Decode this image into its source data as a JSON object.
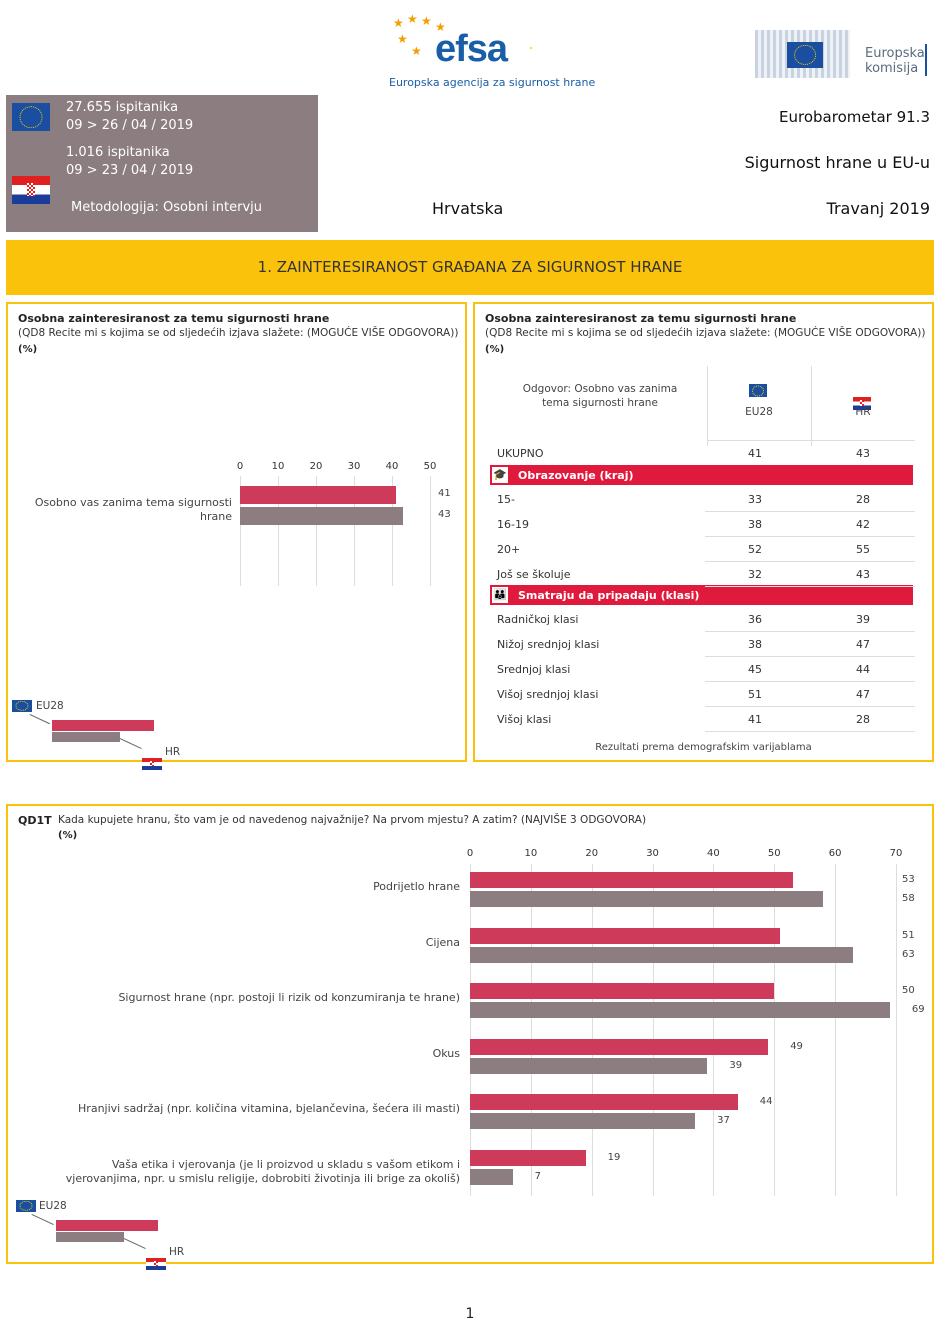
{
  "header": {
    "efsa_word": "efsa",
    "efsa_subtitle": "Europska agencija za sigurnost hrane",
    "ec_line1": "Europska",
    "ec_line2": "komisija"
  },
  "info": {
    "eu_count": "27.655 ispitanika",
    "eu_dates": "09 > 26 / 04 / 2019",
    "hr_count": "1.016 ispitanika",
    "hr_dates": "09 > 23 / 04 / 2019",
    "method": "Metodologija: Osobni intervju"
  },
  "titles": {
    "survey": "Eurobarometar 91.3",
    "topic": "Sigurnost hrane u EU-u",
    "country": "Hrvatska",
    "date": "Travanj  2019"
  },
  "banner": "1. ZAINTERESIRANOST GRAĐANA ZA SIGURNOST HRANE",
  "panel_left": {
    "title": "Osobna zainteresiranost za temu sigurnosti hrane",
    "question": "(QD8 Recite mi s kojima se od sljedećih izjava slažete: (MOGUĆE VIŠE ODGOVORA))",
    "unit": "(%)",
    "chart_data": {
      "type": "bar",
      "orientation": "horizontal",
      "categories": [
        "Osobno vas zanima tema sigurnosti hrane"
      ],
      "series": [
        {
          "name": "EU28",
          "values": [
            41
          ]
        },
        {
          "name": "HR",
          "values": [
            43
          ]
        }
      ],
      "xlim": [
        0,
        50
      ],
      "ticks": [
        0,
        10,
        20,
        30,
        40,
        50
      ]
    },
    "legend_eu": "EU28",
    "legend_hr": "HR"
  },
  "panel_right": {
    "title": "Osobna zainteresiranost za temu sigurnosti hrane",
    "question": "(QD8 Recite mi s kojima se od sljedećih izjava slažete: (MOGUĆE VIŠE ODGOVORA))",
    "unit": "(%)",
    "answer_label": "Odgovor: Osobno vas zanima tema sigurnosti hrane",
    "col_eu": "EU28",
    "col_hr": "HR",
    "total": {
      "label": "UKUPNO",
      "eu": "41",
      "hr": "43"
    },
    "section_education": "Obrazovanje (kraj)",
    "education": [
      {
        "label": "15-",
        "eu": "33",
        "hr": "28"
      },
      {
        "label": "16-19",
        "eu": "38",
        "hr": "42"
      },
      {
        "label": "20+",
        "eu": "52",
        "hr": "55"
      },
      {
        "label": "Još se školuje",
        "eu": "32",
        "hr": "43"
      }
    ],
    "section_class": "Smatraju da pripadaju (klasi)",
    "class_rows": [
      {
        "label": "Radničkoj klasi",
        "eu": "36",
        "hr": "39"
      },
      {
        "label": "Nižoj srednjoj klasi",
        "eu": "38",
        "hr": "47"
      },
      {
        "label": "Srednjoj klasi",
        "eu": "45",
        "hr": "44"
      },
      {
        "label": "Višoj srednjoj klasi",
        "eu": "51",
        "hr": "47"
      },
      {
        "label": "Višoj klasi",
        "eu": "41",
        "hr": "28"
      }
    ],
    "footer": "Rezultati prema demografskim varijablama"
  },
  "panel_bottom": {
    "code": "QD1T",
    "question": "Kada kupujete hranu, što vam je od navedenog najvažnije? Na prvom mjestu? A zatim? (NAJVIŠE 3 ODGOVORA)",
    "unit": "(%)",
    "chart_data": {
      "type": "bar",
      "orientation": "horizontal",
      "categories": [
        "Podrijetlo hrane",
        "Cijena",
        "Sigurnost hrane (npr. postoji li rizik od konzumiranja te hrane)",
        "Okus",
        "Hranjivi sadržaj (npr. količina vitamina, bjelančevina, šećera ili masti)",
        "Vaša etika i vjerovanja (je li proizvod u skladu s vašom etikom i vjerovanjima, npr. u smislu religije, dobrobiti životinja ili brige za okoliš)"
      ],
      "series": [
        {
          "name": "EU28",
          "values": [
            53,
            51,
            50,
            49,
            44,
            19
          ]
        },
        {
          "name": "HR",
          "values": [
            58,
            63,
            69,
            39,
            37,
            7
          ]
        }
      ],
      "xlim": [
        0,
        70
      ],
      "ticks": [
        0,
        10,
        20,
        30,
        40,
        50,
        60,
        70
      ]
    },
    "legend_eu": "EU28",
    "legend_hr": "HR"
  },
  "page_number": "1",
  "colors": {
    "eu": "#cd3a5a",
    "hr": "#8c7e80",
    "banner": "#fbc20b",
    "section": "#e01a3c"
  }
}
